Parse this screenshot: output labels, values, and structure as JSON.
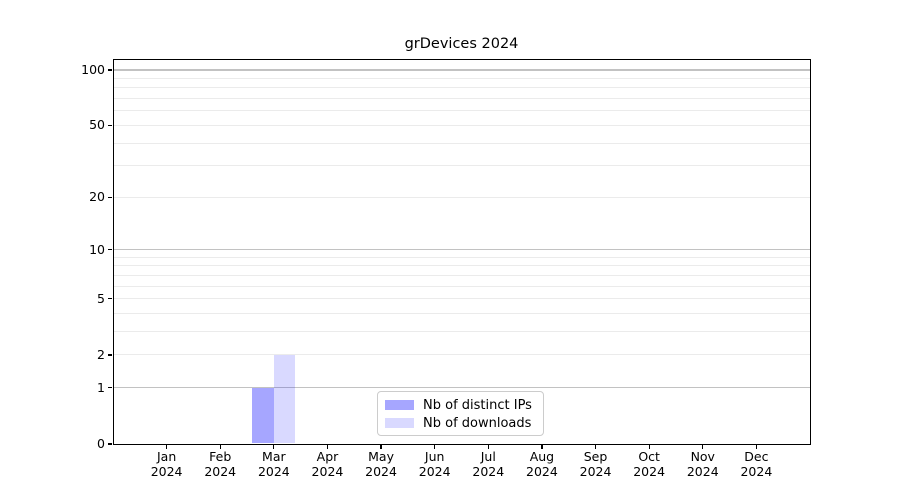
{
  "title": "grDevices 2024",
  "chart_data": {
    "type": "bar",
    "title": "grDevices 2024",
    "x_month_labels": [
      "Jan",
      "Feb",
      "Mar",
      "Apr",
      "May",
      "Jun",
      "Jul",
      "Aug",
      "Sep",
      "Oct",
      "Nov",
      "Dec"
    ],
    "x_year_label": "2024",
    "series": [
      {
        "name": "Nb of distinct IPs",
        "color": "#a6a6ff",
        "fill_rgba": "rgba(0,0,255,0.35)",
        "values": [
          0,
          0,
          1,
          0,
          0,
          0,
          0,
          0,
          0,
          0,
          0,
          0
        ]
      },
      {
        "name": "Nb of downloads",
        "color": "#d9d9ff",
        "fill_rgba": "rgba(0,0,255,0.15)",
        "values": [
          0,
          0,
          2,
          0,
          0,
          0,
          0,
          0,
          0,
          0,
          0,
          0
        ]
      }
    ],
    "y_ticks": [
      0,
      1,
      2,
      5,
      10,
      20,
      50,
      100
    ],
    "y_scale": "log10(1+y)",
    "ylim": [
      0,
      100
    ],
    "xlabel": "",
    "ylabel": "",
    "grid": {
      "major_lines": [
        1,
        10,
        100
      ],
      "minor_lines": [
        2,
        3,
        4,
        5,
        6,
        7,
        8,
        9,
        20,
        30,
        40,
        50,
        60,
        70,
        80,
        90
      ],
      "major_color": "#c2c2c2",
      "minor_color": "#ebebeb"
    },
    "legend": {
      "position": "lower center",
      "entries": [
        "Nb of distinct IPs",
        "Nb of downloads"
      ]
    },
    "axis_color": "#000000",
    "background_color": "#ffffff"
  }
}
